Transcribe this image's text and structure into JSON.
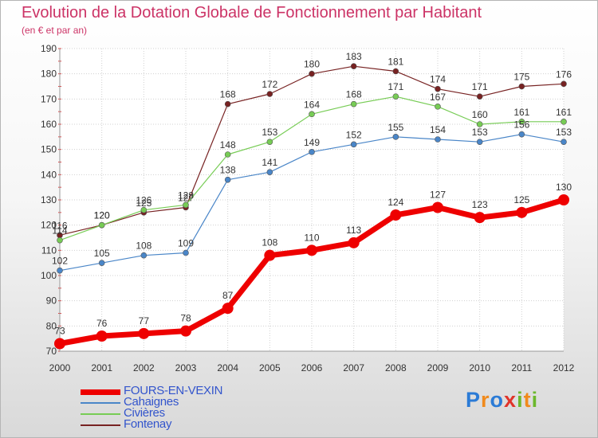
{
  "chart_data": {
    "type": "line",
    "title": "Evolution de la Dotation Globale de Fonctionnement par Habitant",
    "subtitle": "(en € et par an)",
    "xlabel": "",
    "ylabel": "",
    "ylim": [
      70,
      190
    ],
    "yticks": [
      70,
      80,
      90,
      100,
      110,
      120,
      130,
      140,
      150,
      160,
      170,
      180,
      190
    ],
    "grid": true,
    "legend_position": "bottom-left",
    "categories": [
      "2000",
      "2001",
      "2002",
      "2003",
      "2004",
      "2005",
      "2006",
      "2007",
      "2008",
      "2009",
      "2010",
      "2011",
      "2012"
    ],
    "series": [
      {
        "name": "FOURS-EN-VEXIN",
        "color": "#ee0000",
        "values": [
          73,
          76,
          77,
          78,
          87,
          108,
          110,
          113,
          124,
          127,
          123,
          125,
          130
        ]
      },
      {
        "name": "Cahaignes",
        "color": "#4a86c8",
        "values": [
          102,
          105,
          108,
          109,
          138,
          141,
          149,
          152,
          155,
          154,
          153,
          156,
          153
        ]
      },
      {
        "name": "Civières",
        "color": "#77cc55",
        "values": [
          114,
          120,
          126,
          128,
          148,
          153,
          164,
          168,
          171,
          167,
          160,
          161,
          161
        ]
      },
      {
        "name": "Fontenay",
        "color": "#772222",
        "values": [
          116,
          120,
          125,
          127,
          168,
          172,
          180,
          183,
          181,
          174,
          171,
          175,
          176
        ]
      }
    ]
  },
  "logo": {
    "letters": [
      "P",
      "r",
      "o",
      "x",
      "i",
      "t",
      "i"
    ],
    "colors": [
      "#2b7bd6",
      "#f08a1c",
      "#2b7bd6",
      "#e0342a",
      "#6cb82c",
      "#f08a1c",
      "#6cb82c"
    ]
  }
}
